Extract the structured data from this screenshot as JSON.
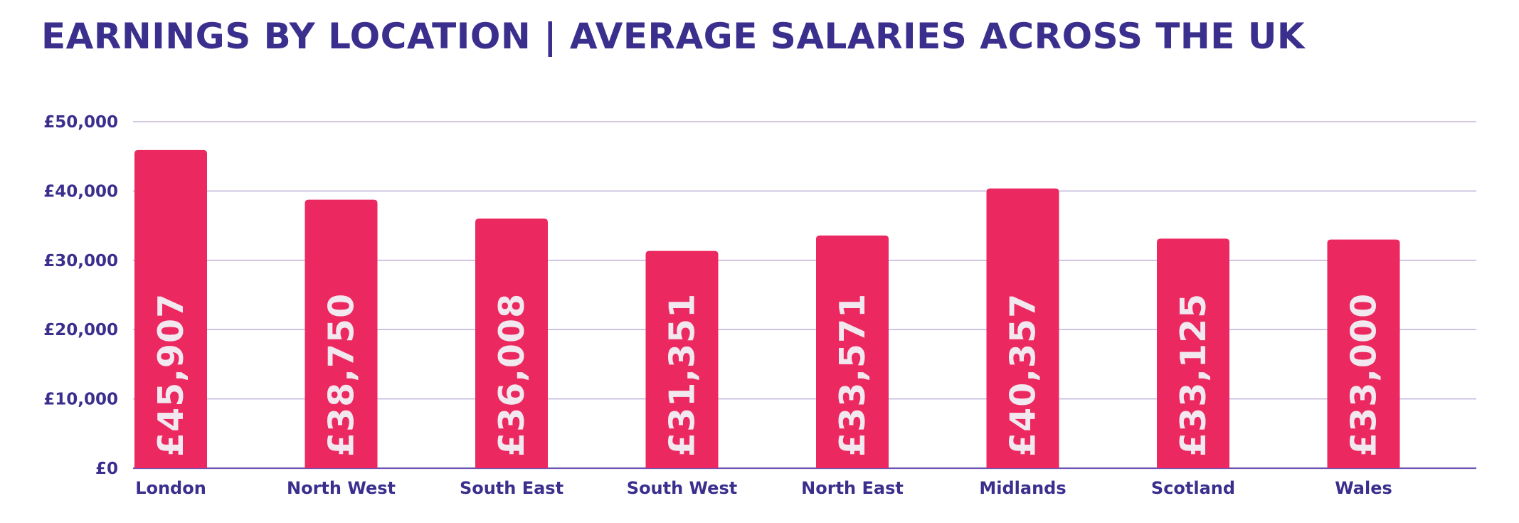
{
  "colors": {
    "title": "#3b2f8e",
    "axis_text": "#3b2f8e",
    "bar": "#eb285f",
    "bar_label": "#f1e9ef",
    "gridline": "#c3b6dc",
    "baseline": "#6a55b5"
  },
  "chart_data": {
    "type": "bar",
    "title": "EARNINGS BY LOCATION | AVERAGE SALARIES ACROSS THE UK",
    "xlabel": "",
    "ylabel": "",
    "categories": [
      "London",
      "North West",
      "South East",
      "South West",
      "North East",
      "Midlands",
      "Scotland",
      "Wales"
    ],
    "values": [
      45907,
      38750,
      36008,
      31351,
      33571,
      40357,
      33125,
      33000
    ],
    "data_labels": [
      "£45,907",
      "£38,750",
      "£36,008",
      "£31,351",
      "£33,571",
      "£40,357",
      "£33,125",
      "£33,000"
    ],
    "ylim": [
      0,
      50000
    ],
    "yticks": [
      0,
      10000,
      20000,
      30000,
      40000,
      50000
    ],
    "ytick_labels": [
      "£0",
      "£10,000",
      "£20,000",
      "£30,000",
      "£40,000",
      "£50,000"
    ],
    "grid": true,
    "legend": "none"
  }
}
